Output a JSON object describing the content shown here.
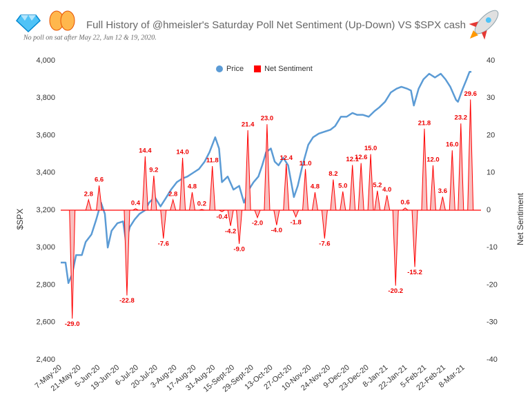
{
  "chart_data": {
    "type": "line-spike",
    "title": "Full History of @hmeisler's Saturday Poll Net Sentiment (Up-Down) VS $SPX  cash",
    "subtitle": "No poll on sat after May 22, Jun 12 & 19, 2020.",
    "ylabel": "$SPX",
    "y2label": "Net Sentiment",
    "xlim": [
      0,
      43.8
    ],
    "xticks": [
      {
        "value": 0,
        "label": "7-May-20"
      },
      {
        "value": 2,
        "label": "21-May-20"
      },
      {
        "value": 4,
        "label": "5-Jun-20"
      },
      {
        "value": 6,
        "label": "19-Jun-20"
      },
      {
        "value": 8,
        "label": "6-Jul-20"
      },
      {
        "value": 10,
        "label": "20-Jul-20"
      },
      {
        "value": 12,
        "label": "3-Aug-20"
      },
      {
        "value": 14,
        "label": "17-Aug-20"
      },
      {
        "value": 16,
        "label": "31-Aug-20"
      },
      {
        "value": 18,
        "label": "15-Sept-20"
      },
      {
        "value": 20,
        "label": "29-Sept-20"
      },
      {
        "value": 22,
        "label": "13-Oct-20"
      },
      {
        "value": 24,
        "label": "27-Oct-20"
      },
      {
        "value": 26,
        "label": "10-Nov-20"
      },
      {
        "value": 28,
        "label": "24-Nov-20"
      },
      {
        "value": 30,
        "label": "9-Dec-20"
      },
      {
        "value": 32,
        "label": "23-Dec-20"
      },
      {
        "value": 34,
        "label": "8-Jan-21"
      },
      {
        "value": 36,
        "label": "22-Jan-21"
      },
      {
        "value": 38,
        "label": "5-Feb-21"
      },
      {
        "value": 40,
        "label": "22-Feb-21"
      },
      {
        "value": 42,
        "label": "8-Mar-21"
      }
    ],
    "ylim": [
      2400,
      4000
    ],
    "yticks": [
      {
        "value": 2400,
        "label": "2,400"
      },
      {
        "value": 2600,
        "label": "2,600"
      },
      {
        "value": 2800,
        "label": "2,800"
      },
      {
        "value": 3000,
        "label": "3,000"
      },
      {
        "value": 3200,
        "label": "3,200"
      },
      {
        "value": 3400,
        "label": "3,400"
      },
      {
        "value": 3600,
        "label": "3,600"
      },
      {
        "value": 3800,
        "label": "3,800"
      },
      {
        "value": 4000,
        "label": "4,000"
      }
    ],
    "y2lim": [
      -40,
      40
    ],
    "y2ticks": [
      -40,
      -30,
      -20,
      -10,
      0,
      10,
      20,
      30,
      40
    ],
    "legend": "top",
    "series": [
      {
        "name": "Price",
        "color": "#5b9bd5",
        "x": [
          0.0,
          0.5,
          0.8,
          1.2,
          1.6,
          2.2,
          2.6,
          3.2,
          3.7,
          4.2,
          4.6,
          4.9,
          5.3,
          5.9,
          6.5,
          6.8,
          7.2,
          7.7,
          8.2,
          8.8,
          9.2,
          9.8,
          10.4,
          10.9,
          11.5,
          12.1,
          12.7,
          13.2,
          13.8,
          14.4,
          15.0,
          15.5,
          16.1,
          16.5,
          16.8,
          17.4,
          18.0,
          18.6,
          19.1,
          19.6,
          20.1,
          20.6,
          21.0,
          21.4,
          21.9,
          22.3,
          22.7,
          23.2,
          23.7,
          24.3,
          24.7,
          25.2,
          25.8,
          26.3,
          26.9,
          27.5,
          28.1,
          28.6,
          29.2,
          29.8,
          30.4,
          30.9,
          31.5,
          32.1,
          32.7,
          33.2,
          33.8,
          34.4,
          35.0,
          35.5,
          36.1,
          36.5,
          36.8,
          37.3,
          37.8,
          38.4,
          39.0,
          39.6,
          40.1,
          40.6,
          41.2,
          41.4,
          41.9,
          42.3,
          42.6,
          42.8
        ],
        "values": [
          2920,
          2920,
          2810,
          2860,
          2960,
          2960,
          3030,
          3070,
          3150,
          3240,
          3180,
          3000,
          3090,
          3130,
          3140,
          3030,
          3110,
          3150,
          3180,
          3200,
          3240,
          3270,
          3220,
          3260,
          3310,
          3350,
          3370,
          3380,
          3400,
          3420,
          3460,
          3510,
          3590,
          3530,
          3350,
          3380,
          3310,
          3330,
          3240,
          3310,
          3350,
          3380,
          3440,
          3510,
          3530,
          3460,
          3440,
          3480,
          3440,
          3270,
          3330,
          3440,
          3550,
          3590,
          3610,
          3620,
          3630,
          3650,
          3700,
          3700,
          3720,
          3710,
          3710,
          3700,
          3730,
          3750,
          3780,
          3830,
          3850,
          3860,
          3850,
          3840,
          3760,
          3850,
          3900,
          3930,
          3910,
          3930,
          3900,
          3860,
          3790,
          3780,
          3850,
          3900,
          3940,
          3940
        ]
      },
      {
        "name": "Net Sentiment",
        "color": "#ff0000",
        "axis": "y2",
        "x": [
          1.2,
          2.9,
          4.0,
          6.9,
          7.8,
          8.8,
          9.7,
          10.7,
          11.7,
          12.7,
          13.7,
          14.7,
          15.8,
          16.8,
          17.7,
          18.6,
          19.5,
          20.5,
          21.5,
          22.5,
          23.5,
          24.5,
          25.5,
          26.5,
          27.5,
          28.4,
          29.4,
          30.4,
          31.3,
          32.3,
          33.0,
          34.0,
          34.9,
          35.9,
          36.9,
          37.9,
          38.8,
          39.8,
          40.8,
          41.7,
          42.7
        ],
        "values": [
          -29,
          2.8,
          6.6,
          -22.8,
          0.4,
          14.4,
          9.2,
          -7.6,
          2.8,
          14,
          4.8,
          0.2,
          11.8,
          -0.4,
          -4.2,
          -9,
          21.4,
          -2,
          23,
          -4,
          12.4,
          -1.8,
          11,
          4.8,
          -7.6,
          8.2,
          5,
          12.1,
          12.6,
          15,
          5.2,
          4,
          -20.2,
          0.6,
          -15.2,
          21.8,
          12,
          3.6,
          16,
          23.2,
          29.6
        ],
        "value_labels": [
          "-29.0",
          "2.8",
          "6.6",
          "-22.8",
          "0.4",
          "14.4",
          "9.2",
          "-7.6",
          "2.8",
          "14.0",
          "4.8",
          "0.2",
          "11.8",
          "-0.4",
          "-4.2",
          "-9.0",
          "21.4",
          "-2.0",
          "23.0",
          "-4.0",
          "12.4",
          "-1.8",
          "11.0",
          "4.8",
          "-7.6",
          "8.2",
          "5.0",
          "12.1",
          "12.6",
          "15.0",
          "5.2",
          "4.0",
          "-20.2",
          "0.6",
          "-15.2",
          "21.8",
          "12.0",
          "3.6",
          "16.0",
          "23.2",
          "29.6"
        ]
      }
    ]
  }
}
